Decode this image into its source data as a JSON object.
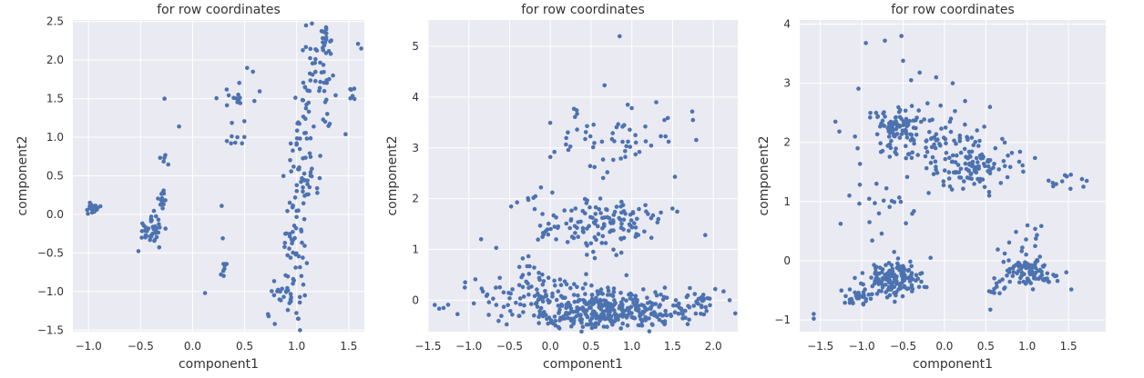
{
  "style": {
    "plot_bg": "#eaeaf2",
    "grid": "#ffffff",
    "point": "#4c72b0",
    "text": "#333333"
  },
  "chart_data": [
    {
      "type": "scatter",
      "title": "for row coordinates",
      "xlabel": "component1",
      "ylabel": "component2",
      "xlim": [
        -1.15,
        1.65
      ],
      "ylim": [
        -1.52,
        2.52
      ],
      "xticks": [
        -1.0,
        -0.5,
        0.0,
        0.5,
        1.0,
        1.5
      ],
      "yticks": [
        -1.5,
        -1.0,
        -0.5,
        0.0,
        0.5,
        1.0,
        1.5,
        2.0,
        2.5
      ],
      "xtick_labels": [
        "−1.0",
        "−0.5",
        "0.0",
        "0.5",
        "1.0",
        "1.5"
      ],
      "ytick_labels": [
        "−1.5",
        "−1.0",
        "−0.5",
        "0.0",
        "0.5",
        "1.0",
        "1.5",
        "2.0",
        "2.5"
      ],
      "grid": true,
      "clusters": [
        {
          "cx": -0.96,
          "cy": 0.08,
          "sx": 0.04,
          "sy": 0.04,
          "n": 22
        },
        {
          "cx": -0.4,
          "cy": -0.2,
          "sx": 0.06,
          "sy": 0.1,
          "n": 40
        },
        {
          "cx": -0.29,
          "cy": 0.2,
          "sx": 0.03,
          "sy": 0.08,
          "n": 14
        },
        {
          "cx": -0.25,
          "cy": 0.78,
          "sx": 0.03,
          "sy": 0.05,
          "n": 5
        },
        {
          "cx": 0.3,
          "cy": -0.72,
          "sx": 0.02,
          "sy": 0.06,
          "n": 8
        },
        {
          "cx": 0.47,
          "cy": 1.45,
          "sx": 0.1,
          "sy": 0.22,
          "n": 20
        },
        {
          "cx": 0.88,
          "cy": -1.05,
          "sx": 0.06,
          "sy": 0.12,
          "n": 22
        },
        {
          "cx": 0.98,
          "cy": -0.4,
          "sx": 0.06,
          "sy": 0.35,
          "n": 45
        },
        {
          "cx": 1.05,
          "cy": 0.5,
          "sx": 0.08,
          "sy": 0.45,
          "n": 60
        },
        {
          "cx": 1.2,
          "cy": 1.7,
          "sx": 0.08,
          "sy": 0.35,
          "n": 55
        },
        {
          "cx": 1.28,
          "cy": 2.3,
          "sx": 0.05,
          "sy": 0.07,
          "n": 12
        },
        {
          "cx": 1.55,
          "cy": 1.6,
          "sx": 0.04,
          "sy": 0.08,
          "n": 6
        }
      ],
      "points": [
        [
          0.12,
          -1.02
        ],
        [
          0.28,
          0.11
        ],
        [
          0.29,
          -0.31
        ],
        [
          0.33,
          0.95
        ],
        [
          0.37,
          0.92
        ],
        [
          0.41,
          0.93
        ],
        [
          0.43,
          1.0
        ],
        [
          0.58,
          1.85
        ],
        [
          0.73,
          -1.32
        ],
        [
          0.79,
          -1.42
        ],
        [
          -0.27,
          1.5
        ],
        [
          -0.13,
          1.14
        ],
        [
          1.47,
          1.04
        ],
        [
          1.59,
          2.21
        ],
        [
          1.62,
          2.15
        ]
      ]
    },
    {
      "type": "scatter",
      "title": "for row coordinates",
      "xlabel": "component1",
      "ylabel": "component2",
      "xlim": [
        -1.5,
        2.3
      ],
      "ylim": [
        -0.62,
        5.52
      ],
      "xticks": [
        -1.5,
        -1.0,
        -0.5,
        0.0,
        0.5,
        1.0,
        1.5,
        2.0
      ],
      "yticks": [
        0,
        1,
        2,
        3,
        4,
        5
      ],
      "xtick_labels": [
        "−1.5",
        "−1.0",
        "−0.5",
        "0.0",
        "0.5",
        "1.0",
        "1.5",
        "2.0"
      ],
      "ytick_labels": [
        "0",
        "1",
        "2",
        "3",
        "4",
        "5"
      ],
      "grid": true,
      "clusters": [
        {
          "cx": 0.7,
          "cy": -0.2,
          "sx": 0.5,
          "sy": 0.18,
          "n": 380
        },
        {
          "cx": 0.1,
          "cy": 0.15,
          "sx": 0.6,
          "sy": 0.2,
          "n": 80
        },
        {
          "cx": 0.6,
          "cy": 1.5,
          "sx": 0.28,
          "sy": 0.3,
          "n": 100
        },
        {
          "cx": 0.0,
          "cy": 1.35,
          "sx": 0.08,
          "sy": 0.1,
          "n": 12
        },
        {
          "cx": 0.7,
          "cy": 3.1,
          "sx": 0.4,
          "sy": 0.35,
          "n": 55
        },
        {
          "cx": -0.25,
          "cy": 2.0,
          "sx": 0.1,
          "sy": 0.1,
          "n": 8
        },
        {
          "cx": 1.1,
          "cy": 1.7,
          "sx": 0.25,
          "sy": 0.3,
          "n": 25
        },
        {
          "cx": 1.9,
          "cy": 0.05,
          "sx": 0.15,
          "sy": 0.15,
          "n": 20
        },
        {
          "cx": -0.5,
          "cy": 0.5,
          "sx": 0.2,
          "sy": 0.35,
          "n": 15
        },
        {
          "cx": -1.35,
          "cy": -0.15,
          "sx": 0.05,
          "sy": 0.05,
          "n": 4
        }
      ],
      "points": [
        [
          0.85,
          5.2
        ],
        [
          0.05,
          2.92
        ],
        [
          0.0,
          2.82
        ],
        [
          1.3,
          3.9
        ],
        [
          1.4,
          3.55
        ],
        [
          1.75,
          3.55
        ],
        [
          0.95,
          3.85
        ],
        [
          -0.85,
          1.2
        ],
        [
          2.2,
          0.0
        ],
        [
          -1.05,
          0.25
        ]
      ]
    },
    {
      "type": "scatter",
      "title": "for row coordinates",
      "xlabel": "component1",
      "ylabel": "component2",
      "xlim": [
        -1.75,
        1.95
      ],
      "ylim": [
        -1.2,
        4.07
      ],
      "xticks": [
        -1.5,
        -1.0,
        -0.5,
        0.0,
        0.5,
        1.0,
        1.5
      ],
      "yticks": [
        -1,
        0,
        1,
        2,
        3,
        4
      ],
      "xtick_labels": [
        "−1.5",
        "−1.0",
        "−0.5",
        "0.0",
        "0.5",
        "1.0",
        "1.5"
      ],
      "ytick_labels": [
        "−1",
        "0",
        "1",
        "2",
        "3",
        "4"
      ],
      "grid": true,
      "clusters": [
        {
          "cx": -0.6,
          "cy": -0.3,
          "sx": 0.18,
          "sy": 0.15,
          "n": 150
        },
        {
          "cx": -1.05,
          "cy": -0.6,
          "sx": 0.1,
          "sy": 0.08,
          "n": 30
        },
        {
          "cx": 1.05,
          "cy": -0.2,
          "sx": 0.15,
          "sy": 0.12,
          "n": 90
        },
        {
          "cx": -0.35,
          "cy": 2.1,
          "sx": 0.35,
          "sy": 0.3,
          "n": 110
        },
        {
          "cx": 0.3,
          "cy": 1.6,
          "sx": 0.3,
          "sy": 0.25,
          "n": 120
        },
        {
          "cx": -0.6,
          "cy": 2.3,
          "sx": 0.1,
          "sy": 0.12,
          "n": 40
        },
        {
          "cx": 0.6,
          "cy": -0.5,
          "sx": 0.08,
          "sy": 0.1,
          "n": 14
        },
        {
          "cx": 0.95,
          "cy": 0.3,
          "sx": 0.15,
          "sy": 0.2,
          "n": 14
        },
        {
          "cx": -0.85,
          "cy": 0.8,
          "sx": 0.2,
          "sy": 0.3,
          "n": 18
        },
        {
          "cx": 1.5,
          "cy": 1.3,
          "sx": 0.12,
          "sy": 0.08,
          "n": 10
        }
      ],
      "points": [
        [
          -0.52,
          3.8
        ],
        [
          -0.5,
          3.38
        ],
        [
          -0.72,
          3.72
        ],
        [
          -0.95,
          3.68
        ],
        [
          -0.3,
          3.18
        ],
        [
          0.1,
          3.0
        ],
        [
          -0.1,
          3.1
        ],
        [
          0.25,
          2.7
        ],
        [
          0.55,
          2.6
        ],
        [
          -1.58,
          -0.9
        ],
        [
          -1.58,
          -0.98
        ],
        [
          -1.15,
          1.1
        ],
        [
          1.72,
          1.35
        ],
        [
          1.68,
          1.25
        ],
        [
          -1.05,
          1.9
        ]
      ]
    }
  ]
}
